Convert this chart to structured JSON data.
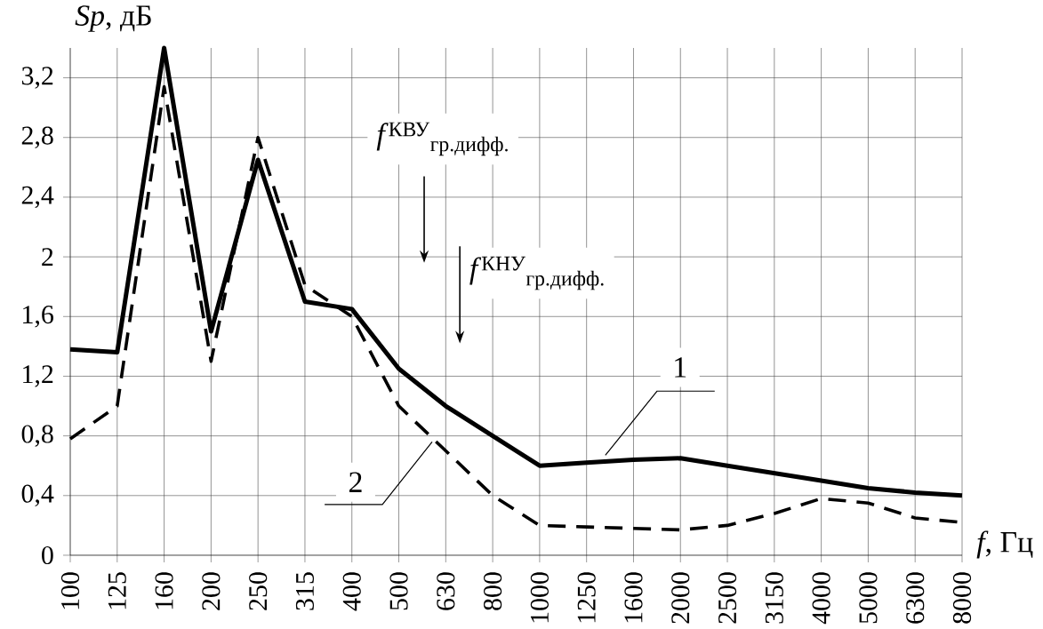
{
  "chart_data": {
    "type": "line",
    "xlabel": "*f*, Гц",
    "ylabel": "*Sp*, дБ",
    "categories": [
      "100",
      "125",
      "160",
      "200",
      "250",
      "315",
      "400",
      "500",
      "630",
      "800",
      "1000",
      "1250",
      "1600",
      "2000",
      "2500",
      "3150",
      "4000",
      "5000",
      "6300",
      "8000"
    ],
    "series": [
      {
        "name": "1",
        "color": "#000000",
        "line_style": "solid",
        "values": [
          1.38,
          1.36,
          3.4,
          1.5,
          2.65,
          1.7,
          1.65,
          1.25,
          1.0,
          0.8,
          0.6,
          0.62,
          0.64,
          0.65,
          0.6,
          0.55,
          0.5,
          0.45,
          0.42,
          0.4
        ]
      },
      {
        "name": "2",
        "color": "#000000",
        "line_style": "dashed",
        "values": [
          0.78,
          1.0,
          3.14,
          1.3,
          2.8,
          1.81,
          1.6,
          1.0,
          0.7,
          0.4,
          0.2,
          0.19,
          0.18,
          0.17,
          0.2,
          0.28,
          0.38,
          0.35,
          0.25,
          0.22
        ]
      }
    ],
    "ylim": [
      0,
      3.4
    ],
    "yticks": [
      0,
      {
        "value": 0.4,
        "label": "0,4"
      },
      {
        "value": 0.8,
        "label": "0,8"
      },
      {
        "value": 1.2,
        "label": "1,2"
      },
      {
        "value": 1.6,
        "label": "1,6"
      },
      2,
      {
        "value": 2.4,
        "label": "2,4"
      },
      {
        "value": 2.8,
        "label": "2,8"
      },
      {
        "value": 3.2,
        "label": "3,2"
      }
    ],
    "grid": true,
    "annotations": [
      "*f*$^{КВУ}$$_{гр.дифф.}$",
      "*f*$^{КНУ}$$_{гр.дифф.}$"
    ]
  }
}
